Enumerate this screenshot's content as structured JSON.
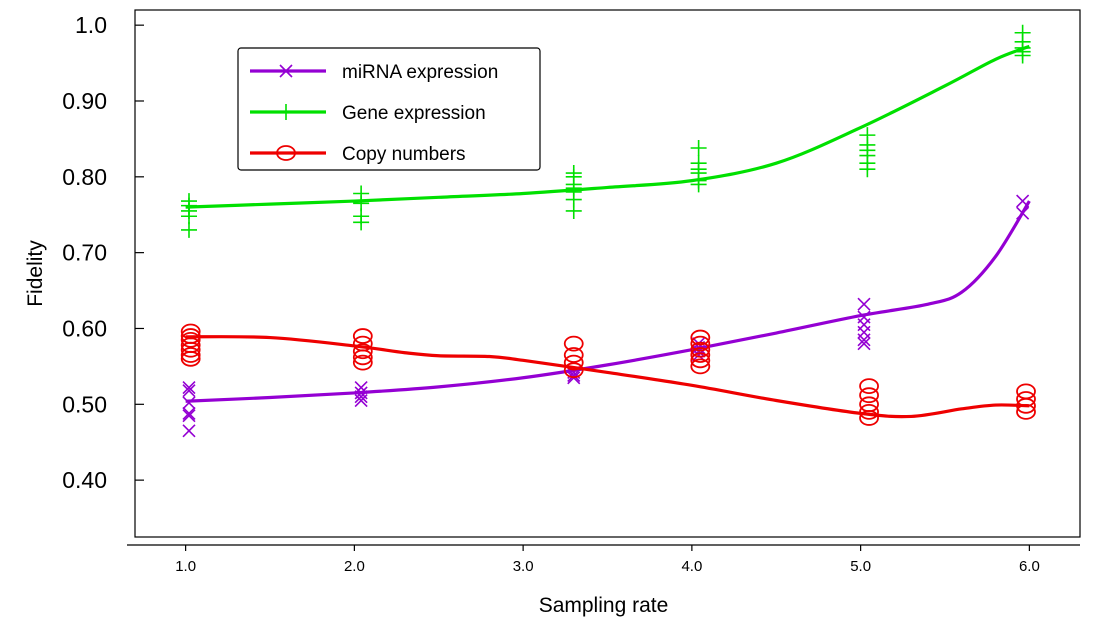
{
  "chart_data": {
    "type": "scatter",
    "xlabel": "Sampling rate",
    "ylabel": "Fidelity",
    "xlim": [
      0.7,
      6.3
    ],
    "ylim": [
      0.325,
      1.02
    ],
    "x_ticks": [
      1.0,
      2.0,
      3.0,
      4.0,
      5.0,
      6.0
    ],
    "x_tick_labels": [
      "1.0",
      "2.0",
      "3.0",
      "4.0",
      "5.0",
      "6.0"
    ],
    "y_ticks": [
      0.4,
      0.5,
      0.6,
      0.7,
      0.8,
      0.9,
      1.0
    ],
    "y_tick_labels": [
      "0.40",
      "0.50",
      "0.60",
      "0.70",
      "0.80",
      "0.90",
      "1.0"
    ],
    "legend_position": "top-left",
    "series": [
      {
        "name": "miRNA expression",
        "color": "#9400d3",
        "marker": "x",
        "points": [
          [
            1.02,
            0.465
          ],
          [
            1.02,
            0.485
          ],
          [
            1.02,
            0.488
          ],
          [
            1.02,
            0.502
          ],
          [
            1.02,
            0.518
          ],
          [
            1.02,
            0.522
          ],
          [
            2.04,
            0.505
          ],
          [
            2.04,
            0.51
          ],
          [
            2.04,
            0.515
          ],
          [
            2.04,
            0.522
          ],
          [
            3.3,
            0.535
          ],
          [
            3.3,
            0.538
          ],
          [
            3.3,
            0.542
          ],
          [
            4.04,
            0.565
          ],
          [
            4.04,
            0.57
          ],
          [
            4.04,
            0.575
          ],
          [
            4.04,
            0.58
          ],
          [
            5.02,
            0.58
          ],
          [
            5.02,
            0.585
          ],
          [
            5.02,
            0.595
          ],
          [
            5.02,
            0.605
          ],
          [
            5.02,
            0.615
          ],
          [
            5.02,
            0.632
          ],
          [
            5.96,
            0.752
          ],
          [
            5.96,
            0.768
          ]
        ],
        "trend": [
          [
            1.0,
            0.504
          ],
          [
            1.5,
            0.509
          ],
          [
            2.0,
            0.515
          ],
          [
            2.5,
            0.523
          ],
          [
            3.0,
            0.535
          ],
          [
            3.5,
            0.552
          ],
          [
            4.0,
            0.572
          ],
          [
            4.5,
            0.594
          ],
          [
            5.0,
            0.617
          ],
          [
            5.4,
            0.632
          ],
          [
            5.6,
            0.648
          ],
          [
            5.8,
            0.695
          ],
          [
            6.0,
            0.768
          ]
        ]
      },
      {
        "name": "Gene expression",
        "color": "#00e000",
        "marker": "+",
        "points": [
          [
            1.02,
            0.73
          ],
          [
            1.02,
            0.748
          ],
          [
            1.02,
            0.755
          ],
          [
            1.02,
            0.762
          ],
          [
            1.02,
            0.768
          ],
          [
            2.04,
            0.74
          ],
          [
            2.04,
            0.748
          ],
          [
            2.04,
            0.765
          ],
          [
            2.04,
            0.778
          ],
          [
            3.3,
            0.755
          ],
          [
            3.3,
            0.77
          ],
          [
            3.3,
            0.78
          ],
          [
            3.3,
            0.785
          ],
          [
            3.3,
            0.79
          ],
          [
            3.3,
            0.8
          ],
          [
            3.3,
            0.805
          ],
          [
            4.04,
            0.79
          ],
          [
            4.04,
            0.795
          ],
          [
            4.04,
            0.805
          ],
          [
            4.04,
            0.81
          ],
          [
            4.04,
            0.818
          ],
          [
            4.04,
            0.838
          ],
          [
            5.04,
            0.81
          ],
          [
            5.04,
            0.818
          ],
          [
            5.04,
            0.828
          ],
          [
            5.04,
            0.835
          ],
          [
            5.04,
            0.842
          ],
          [
            5.04,
            0.855
          ],
          [
            5.96,
            0.96
          ],
          [
            5.96,
            0.965
          ],
          [
            5.96,
            0.97
          ],
          [
            5.96,
            0.978
          ],
          [
            5.96,
            0.99
          ]
        ],
        "trend": [
          [
            1.0,
            0.76
          ],
          [
            1.5,
            0.764
          ],
          [
            2.0,
            0.768
          ],
          [
            2.5,
            0.773
          ],
          [
            3.0,
            0.778
          ],
          [
            3.5,
            0.786
          ],
          [
            4.0,
            0.795
          ],
          [
            4.5,
            0.818
          ],
          [
            5.0,
            0.865
          ],
          [
            5.5,
            0.92
          ],
          [
            5.8,
            0.955
          ],
          [
            6.0,
            0.972
          ]
        ]
      },
      {
        "name": "Copy numbers",
        "color": "#ee0000",
        "marker": "o",
        "points": [
          [
            1.03,
            0.56
          ],
          [
            1.03,
            0.565
          ],
          [
            1.03,
            0.572
          ],
          [
            1.03,
            0.578
          ],
          [
            1.03,
            0.585
          ],
          [
            1.03,
            0.59
          ],
          [
            1.03,
            0.596
          ],
          [
            2.05,
            0.555
          ],
          [
            2.05,
            0.562
          ],
          [
            2.05,
            0.57
          ],
          [
            2.05,
            0.58
          ],
          [
            2.05,
            0.59
          ],
          [
            3.3,
            0.545
          ],
          [
            3.3,
            0.555
          ],
          [
            3.3,
            0.565
          ],
          [
            3.3,
            0.58
          ],
          [
            4.05,
            0.55
          ],
          [
            4.05,
            0.558
          ],
          [
            4.05,
            0.565
          ],
          [
            4.05,
            0.572
          ],
          [
            4.05,
            0.58
          ],
          [
            4.05,
            0.588
          ],
          [
            5.05,
            0.482
          ],
          [
            5.05,
            0.49
          ],
          [
            5.05,
            0.5
          ],
          [
            5.05,
            0.512
          ],
          [
            5.05,
            0.524
          ],
          [
            5.98,
            0.49
          ],
          [
            5.98,
            0.498
          ],
          [
            5.98,
            0.507
          ],
          [
            5.98,
            0.517
          ]
        ],
        "trend": [
          [
            1.0,
            0.589
          ],
          [
            1.5,
            0.588
          ],
          [
            2.0,
            0.577
          ],
          [
            2.3,
            0.568
          ],
          [
            2.5,
            0.564
          ],
          [
            2.8,
            0.563
          ],
          [
            3.0,
            0.558
          ],
          [
            3.5,
            0.542
          ],
          [
            4.0,
            0.525
          ],
          [
            4.5,
            0.505
          ],
          [
            5.0,
            0.488
          ],
          [
            5.3,
            0.484
          ],
          [
            5.6,
            0.494
          ],
          [
            5.8,
            0.499
          ],
          [
            6.0,
            0.498
          ]
        ]
      }
    ]
  }
}
